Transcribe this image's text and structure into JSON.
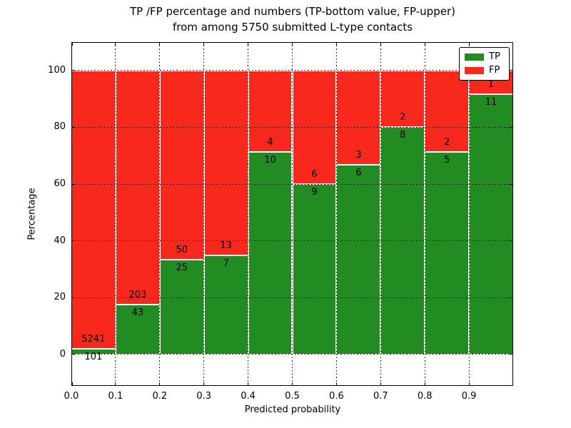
{
  "figure": {
    "title_line1": "TP /FP percentage and numbers (TP-bottom value, FP-upper)",
    "title_line2": "from among 5750 submitted L-type contacts"
  },
  "colors": {
    "tp_green": "#228b22",
    "fp_red": "#f8281c",
    "axis_black": "#000000",
    "bar_edge_white": "#ffffff",
    "background": "#ffffff"
  },
  "legend": {
    "position": "upper right",
    "entries": [
      {
        "label": "TP",
        "color": "#228b22"
      },
      {
        "label": "FP",
        "color": "#f8281c"
      }
    ]
  },
  "chart_data": {
    "type": "bar",
    "stacked": true,
    "percent_normalized": true,
    "title": "TP /FP percentage and numbers (TP-bottom value, FP-upper) from among 5750 submitted L-type contacts",
    "total_contacts": 5750,
    "xlabel": "Predicted probability",
    "ylabel": "Percentage",
    "xlim": [
      0.0,
      1.0
    ],
    "ylim": [
      -11.1,
      110
    ],
    "grid": "dotted",
    "x_tick_values": [
      0.0,
      0.1,
      0.2,
      0.3,
      0.4,
      0.5,
      0.6,
      0.7,
      0.8,
      0.9
    ],
    "x_tick_labels": [
      "0.0",
      "0.1",
      "0.2",
      "0.3",
      "0.4",
      "0.5",
      "0.6",
      "0.7",
      "0.8",
      "0.9"
    ],
    "y_tick_values": [
      0,
      20,
      40,
      60,
      80,
      100
    ],
    "y_tick_labels": [
      "0",
      "20",
      "40",
      "60",
      "80",
      "100"
    ],
    "series": [
      {
        "name": "TP",
        "counts": [
          101,
          43,
          25,
          7,
          10,
          9,
          6,
          8,
          5,
          11
        ]
      },
      {
        "name": "FP",
        "counts": [
          5241,
          203,
          50,
          13,
          4,
          6,
          3,
          2,
          2,
          1
        ]
      }
    ],
    "bins": [
      {
        "x_start": 0.0,
        "x_end": 0.1,
        "tp": 101,
        "fp": 5241,
        "tp_pct": 1.89,
        "fp_pct": 98.11
      },
      {
        "x_start": 0.1,
        "x_end": 0.2,
        "tp": 43,
        "fp": 203,
        "tp_pct": 17.48,
        "fp_pct": 82.52
      },
      {
        "x_start": 0.2,
        "x_end": 0.3,
        "tp": 25,
        "fp": 50,
        "tp_pct": 33.33,
        "fp_pct": 66.67
      },
      {
        "x_start": 0.3,
        "x_end": 0.4,
        "tp": 7,
        "fp": 13,
        "tp_pct": 35.0,
        "fp_pct": 65.0
      },
      {
        "x_start": 0.4,
        "x_end": 0.5,
        "tp": 10,
        "fp": 4,
        "tp_pct": 71.43,
        "fp_pct": 28.57
      },
      {
        "x_start": 0.5,
        "x_end": 0.6,
        "tp": 9,
        "fp": 6,
        "tp_pct": 60.0,
        "fp_pct": 40.0
      },
      {
        "x_start": 0.6,
        "x_end": 0.7,
        "tp": 6,
        "fp": 3,
        "tp_pct": 66.67,
        "fp_pct": 33.33
      },
      {
        "x_start": 0.7,
        "x_end": 0.8,
        "tp": 8,
        "fp": 2,
        "tp_pct": 80.0,
        "fp_pct": 20.0
      },
      {
        "x_start": 0.8,
        "x_end": 0.9,
        "tp": 5,
        "fp": 2,
        "tp_pct": 71.43,
        "fp_pct": 28.57
      },
      {
        "x_start": 0.9,
        "x_end": 1.0,
        "tp": 11,
        "fp": 1,
        "tp_pct": 91.67,
        "fp_pct": 8.33
      }
    ]
  }
}
